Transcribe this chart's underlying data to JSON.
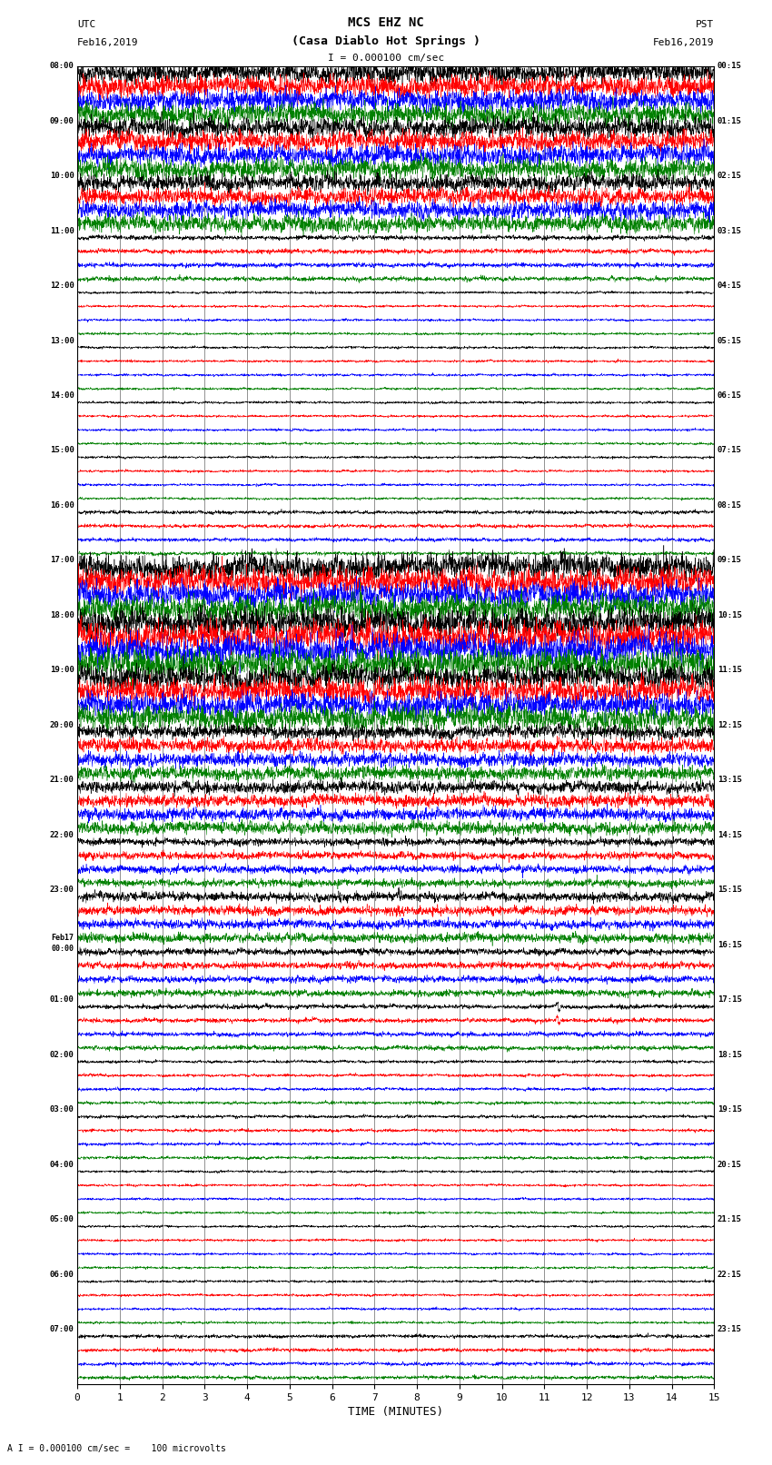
{
  "title_line1": "MCS EHZ NC",
  "title_line2": "(Casa Diablo Hot Springs )",
  "scale_label": "I = 0.000100 cm/sec",
  "bottom_label": "A I = 0.000100 cm/sec =    100 microvolts",
  "utc_label": "UTC",
  "pst_label": "PST",
  "date_left": "Feb16,2019",
  "date_right": "Feb16,2019",
  "xlabel": "TIME (MINUTES)",
  "left_times_major": {
    "0": "08:00",
    "4": "09:00",
    "8": "10:00",
    "12": "11:00",
    "16": "12:00",
    "20": "13:00",
    "24": "14:00",
    "28": "15:00",
    "32": "16:00",
    "36": "17:00",
    "40": "18:00",
    "44": "19:00",
    "48": "20:00",
    "52": "21:00",
    "56": "22:00",
    "60": "23:00",
    "64": "00:00",
    "68": "01:00",
    "72": "02:00",
    "76": "03:00",
    "80": "04:00",
    "84": "05:00",
    "88": "06:00",
    "92": "07:00"
  },
  "feb17_row": 64,
  "right_times_major": {
    "0": "00:15",
    "4": "01:15",
    "8": "02:15",
    "12": "03:15",
    "16": "04:15",
    "20": "05:15",
    "24": "06:15",
    "28": "07:15",
    "32": "08:15",
    "36": "09:15",
    "40": "10:15",
    "44": "11:15",
    "48": "12:15",
    "52": "13:15",
    "56": "14:15",
    "60": "15:15",
    "64": "16:15",
    "68": "17:15",
    "72": "18:15",
    "76": "19:15",
    "80": "20:15",
    "84": "21:15",
    "88": "22:15",
    "92": "23:15"
  },
  "colors": [
    "black",
    "red",
    "blue",
    "green"
  ],
  "n_rows": 96,
  "n_cols": 3000,
  "x_ticks": [
    0,
    1,
    2,
    3,
    4,
    5,
    6,
    7,
    8,
    9,
    10,
    11,
    12,
    13,
    14,
    15
  ],
  "x_lim": [
    0,
    15
  ],
  "background": "white",
  "fig_width": 8.5,
  "fig_height": 16.13,
  "dpi": 100,
  "amplitude_by_block": [
    0.7,
    0.7,
    0.7,
    0.7,
    0.65,
    0.65,
    0.65,
    0.65,
    0.55,
    0.55,
    0.55,
    0.55,
    0.15,
    0.15,
    0.15,
    0.15,
    0.08,
    0.08,
    0.08,
    0.08,
    0.08,
    0.08,
    0.08,
    0.08,
    0.08,
    0.08,
    0.08,
    0.08,
    0.08,
    0.08,
    0.08,
    0.08,
    0.12,
    0.12,
    0.12,
    0.12,
    0.85,
    0.85,
    0.85,
    0.85,
    0.95,
    0.95,
    0.95,
    0.95,
    0.8,
    0.8,
    0.8,
    0.8,
    0.45,
    0.45,
    0.45,
    0.45,
    0.4,
    0.4,
    0.4,
    0.4,
    0.25,
    0.25,
    0.25,
    0.25,
    0.3,
    0.3,
    0.3,
    0.3,
    0.22,
    0.22,
    0.22,
    0.22,
    0.15,
    0.15,
    0.15,
    0.15,
    0.1,
    0.1,
    0.1,
    0.1,
    0.1,
    0.1,
    0.1,
    0.1,
    0.08,
    0.08,
    0.08,
    0.08,
    0.08,
    0.08,
    0.08,
    0.08,
    0.08,
    0.08,
    0.08,
    0.08,
    0.12,
    0.12,
    0.12,
    0.12
  ]
}
